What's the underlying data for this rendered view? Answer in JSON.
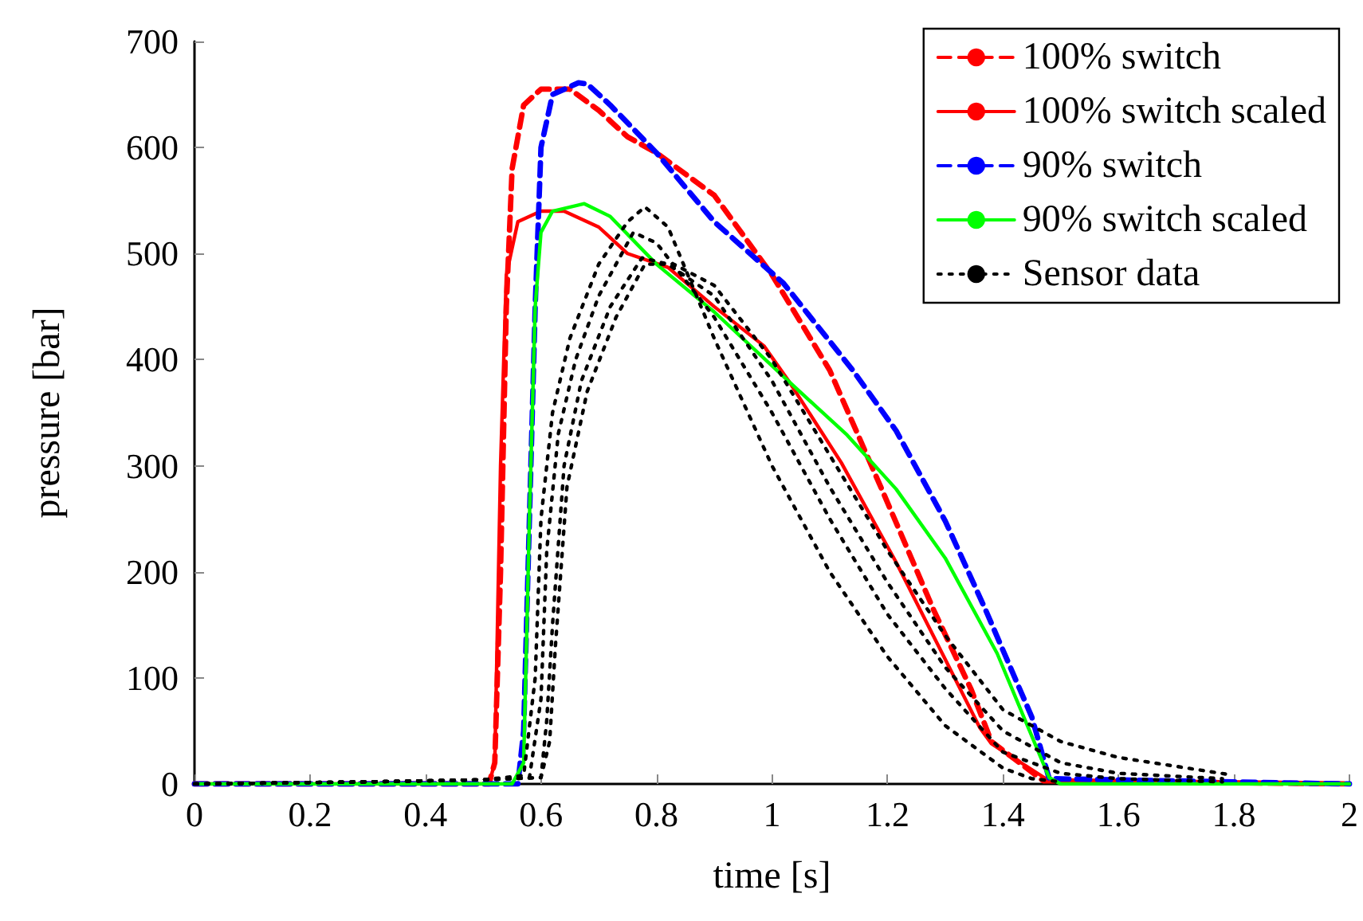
{
  "chart_data": {
    "type": "line",
    "xlabel": "time [s]",
    "ylabel": "pressure [bar]",
    "xlim": [
      0,
      2
    ],
    "ylim": [
      0,
      700
    ],
    "xticks": [
      0,
      0.2,
      0.4,
      0.6,
      0.8,
      1,
      1.2,
      1.4,
      1.6,
      1.8,
      2
    ],
    "yticks": [
      0,
      100,
      200,
      300,
      400,
      500,
      600,
      700
    ],
    "grid": false,
    "legend": "top right",
    "marker": "none",
    "series": [
      {
        "name": "100% switch",
        "color": "#ff0000",
        "line_style": "dashed",
        "x": [
          0,
          0.51,
          0.52,
          0.53,
          0.54,
          0.55,
          0.57,
          0.6,
          0.65,
          0.7,
          0.75,
          0.8,
          0.9,
          1.0,
          1.1,
          1.19,
          1.28,
          1.345,
          1.38,
          1.47,
          2
        ],
        "values": [
          0,
          0,
          20,
          200,
          450,
          580,
          640,
          655,
          655,
          635,
          610,
          595,
          555,
          480,
          390,
          278,
          164,
          89,
          40,
          3,
          0
        ]
      },
      {
        "name": "100% switch scaled",
        "color": "#ff0000",
        "line_style": "solid",
        "x": [
          0,
          0.51,
          0.52,
          0.53,
          0.54,
          0.56,
          0.6,
          0.64,
          0.7,
          0.75,
          0.82,
          0.9,
          0.986,
          1.03,
          1.12,
          1.215,
          1.36,
          1.38,
          1.48,
          2
        ],
        "values": [
          0,
          0,
          20,
          300,
          480,
          530,
          540,
          540,
          525,
          500,
          487,
          450,
          413,
          379,
          303,
          209,
          53,
          38,
          3,
          0
        ]
      },
      {
        "name": "90% switch",
        "color": "#0000ff",
        "line_style": "dashed",
        "x": [
          0,
          0.56,
          0.57,
          0.58,
          0.59,
          0.6,
          0.62,
          0.665,
          0.68,
          0.72,
          0.8,
          0.9,
          1.02,
          1.14,
          1.215,
          1.3,
          1.37,
          1.45,
          1.48,
          2
        ],
        "values": [
          0,
          0,
          50,
          250,
          450,
          600,
          650,
          661,
          660,
          640,
          595,
          530,
          472,
          390,
          333,
          248,
          164,
          63,
          5,
          0
        ]
      },
      {
        "name": "90% switch scaled",
        "color": "#00ff00",
        "line_style": "solid",
        "x": [
          0,
          0.55,
          0.57,
          0.58,
          0.59,
          0.6,
          0.62,
          0.675,
          0.72,
          0.8,
          0.9,
          1.03,
          1.13,
          1.215,
          1.3,
          1.39,
          1.48,
          1.5,
          2
        ],
        "values": [
          0,
          0,
          20,
          250,
          450,
          520,
          540,
          547,
          535,
          490,
          445,
          379,
          329,
          278,
          213,
          123,
          6,
          0,
          0
        ]
      },
      {
        "name": "Sensor data",
        "color": "#000000",
        "line_style": "dotted",
        "x": [
          0,
          0.3,
          0.5,
          0.57,
          0.59,
          0.6,
          0.62,
          0.65,
          0.7,
          0.75,
          0.78,
          0.82,
          0.9,
          1.0,
          1.1,
          1.2,
          1.3,
          1.4,
          1.45,
          1.5
        ],
        "values": [
          0,
          2,
          4,
          8,
          100,
          250,
          350,
          420,
          490,
          530,
          544,
          525,
          420,
          300,
          200,
          120,
          55,
          15,
          5,
          2
        ]
      },
      {
        "color": "#000000",
        "line_style": "dotted",
        "x": [
          0,
          0.3,
          0.5,
          0.58,
          0.6,
          0.61,
          0.63,
          0.66,
          0.7,
          0.76,
          0.8,
          0.9,
          1.0,
          1.1,
          1.2,
          1.3,
          1.4,
          1.5,
          1.6,
          1.78
        ],
        "values": [
          0,
          2,
          4,
          6,
          80,
          220,
          330,
          400,
          460,
          520,
          510,
          440,
          350,
          250,
          160,
          90,
          30,
          10,
          5,
          2
        ]
      },
      {
        "color": "#000000",
        "line_style": "dotted",
        "x": [
          0,
          0.3,
          0.5,
          0.6,
          0.61,
          0.62,
          0.64,
          0.67,
          0.72,
          0.775,
          0.82,
          0.9,
          1.0,
          1.1,
          1.2,
          1.3,
          1.4,
          1.5,
          1.6,
          1.78
        ],
        "values": [
          0,
          2,
          4,
          6,
          60,
          150,
          300,
          380,
          450,
          496,
          490,
          460,
          380,
          280,
          190,
          110,
          50,
          20,
          10,
          5
        ]
      },
      {
        "color": "#000000",
        "line_style": "dotted",
        "x": [
          0,
          0.3,
          0.5,
          0.6,
          0.615,
          0.625,
          0.645,
          0.68,
          0.73,
          0.78,
          0.83,
          0.9,
          1.0,
          1.1,
          1.2,
          1.3,
          1.4,
          1.5,
          1.6,
          1.79
        ],
        "values": [
          0,
          2,
          4,
          6,
          40,
          130,
          280,
          370,
          440,
          490,
          490,
          470,
          400,
          310,
          220,
          140,
          70,
          40,
          25,
          9
        ]
      }
    ]
  }
}
